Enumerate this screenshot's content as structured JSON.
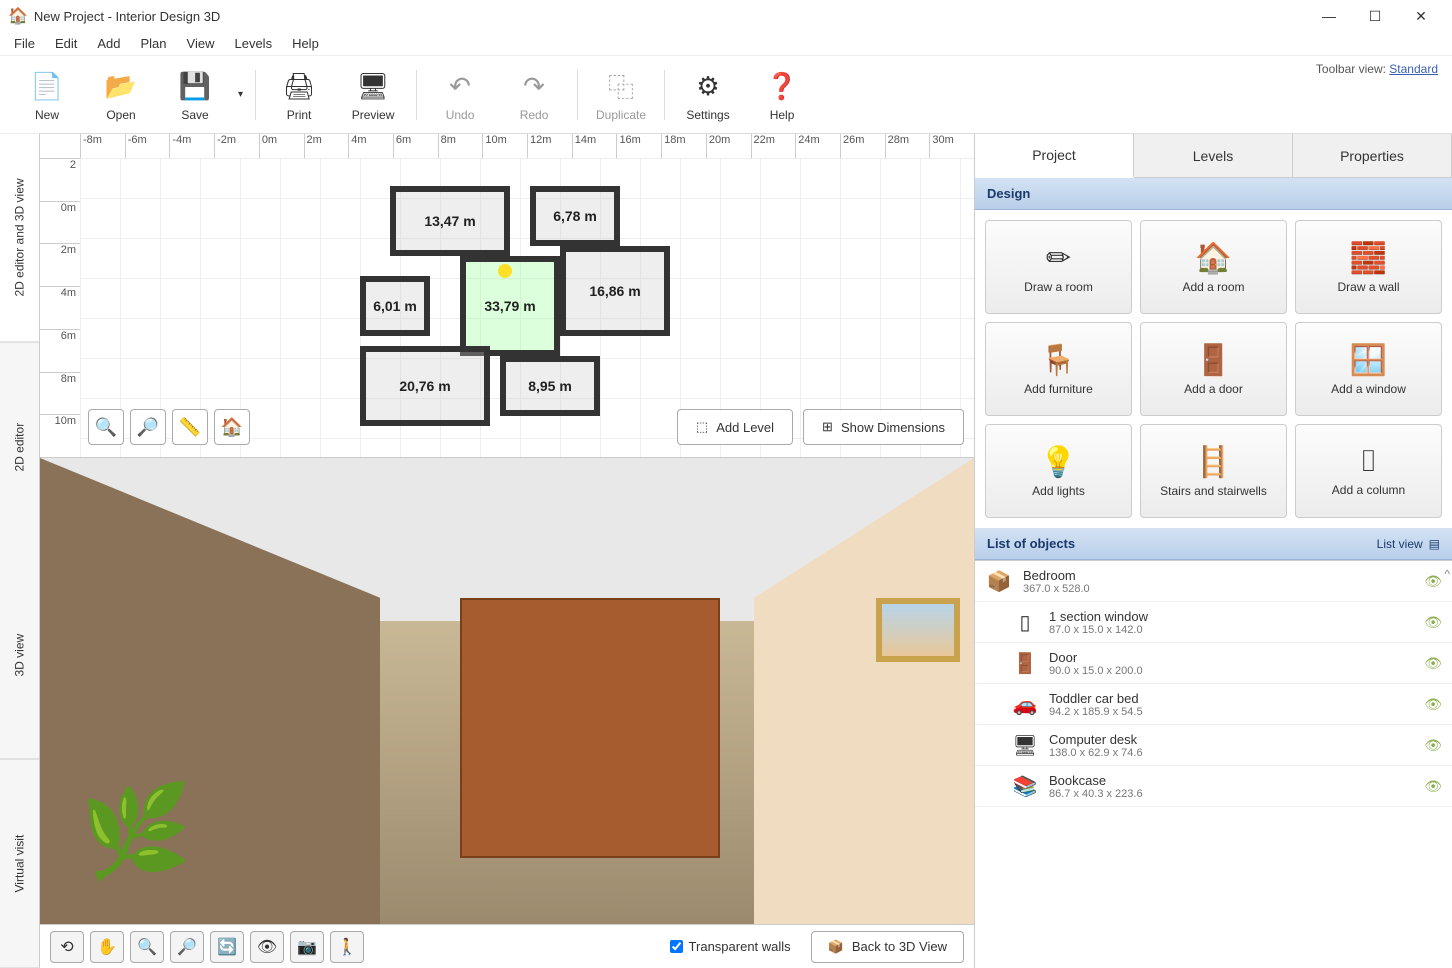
{
  "window": {
    "title": "New Project - Interior Design 3D"
  },
  "menu": [
    "File",
    "Edit",
    "Add",
    "Plan",
    "View",
    "Levels",
    "Help"
  ],
  "toolbar": {
    "new": "New",
    "open": "Open",
    "save": "Save",
    "print": "Print",
    "preview": "Preview",
    "undo": "Undo",
    "redo": "Redo",
    "duplicate": "Duplicate",
    "settings": "Settings",
    "help": "Help",
    "view_label": "Toolbar view:",
    "view_value": "Standard"
  },
  "left_tabs": {
    "combo": "2D editor and 3D view",
    "editor": "2D editor",
    "view3d": "3D view",
    "virtual": "Virtual visit"
  },
  "ruler_h": [
    "-8m",
    "-6m",
    "-4m",
    "-2m",
    "0m",
    "2m",
    "4m",
    "6m",
    "8m",
    "10m",
    "12m",
    "14m",
    "16m",
    "18m",
    "20m",
    "22m",
    "24m",
    "26m",
    "28m",
    "30m"
  ],
  "ruler_v": [
    "2",
    "0m",
    "2m",
    "4m",
    "6m",
    "8m",
    "10m"
  ],
  "rooms": {
    "r1": "13,47 m",
    "r2": "6,78 m",
    "r3": "33,79 m",
    "r4": "16,86 m",
    "r5": "6,01 m",
    "r6": "20,76 m",
    "r7": "8,95 m"
  },
  "plan_actions": {
    "add_level": "Add Level",
    "show_dim": "Show Dimensions"
  },
  "right_tabs": {
    "project": "Project",
    "levels": "Levels",
    "properties": "Properties"
  },
  "design_header": "Design",
  "design_buttons": {
    "draw_room": "Draw a room",
    "add_room": "Add a room",
    "draw_wall": "Draw a wall",
    "add_furniture": "Add furniture",
    "add_door": "Add a door",
    "add_window": "Add a window",
    "add_lights": "Add lights",
    "stairs": "Stairs and stairwells",
    "add_column": "Add a column"
  },
  "objects_header": "List of objects",
  "objects_view": "List view",
  "objects": [
    {
      "name": "Bedroom",
      "dim": "367.0 x 528.0",
      "icon": "📦",
      "child": false
    },
    {
      "name": "1 section window",
      "dim": "87.0 x 15.0 x 142.0",
      "icon": "▯",
      "child": true
    },
    {
      "name": "Door",
      "dim": "90.0 x 15.0 x 200.0",
      "icon": "🚪",
      "child": true
    },
    {
      "name": "Toddler car bed",
      "dim": "94.2 x 185.9 x 54.5",
      "icon": "🚗",
      "child": true
    },
    {
      "name": "Computer desk",
      "dim": "138.0 x 62.9 x 74.6",
      "icon": "🖥",
      "child": true
    },
    {
      "name": "Bookcase",
      "dim": "86.7 x 40.3 x 223.6",
      "icon": "📚",
      "child": true
    }
  ],
  "bottom": {
    "transparent": "Transparent walls",
    "back3d": "Back to 3D View"
  }
}
